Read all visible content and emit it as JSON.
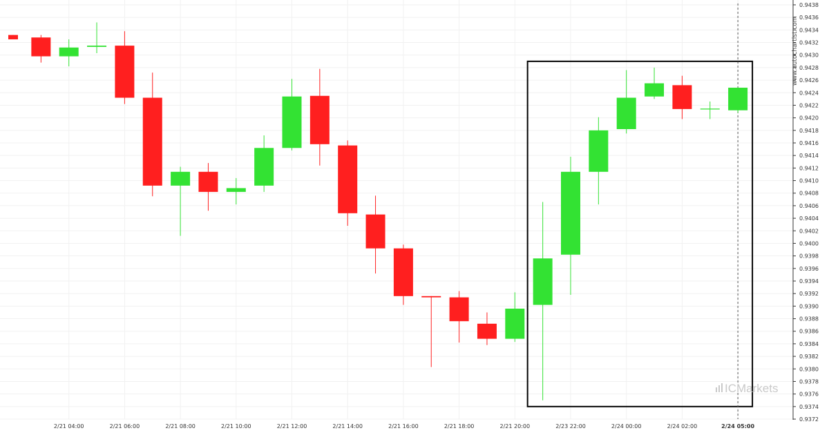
{
  "chart_data": {
    "type": "candlestick",
    "title": "",
    "xlabel": "",
    "ylabel": "",
    "ylim": [
      0.9372,
      0.9438
    ],
    "grid": true,
    "up_color": "#33e233",
    "down_color": "#ff1f1f",
    "y_ticks": [
      "0.9372",
      "0.9374",
      "0.9376",
      "0.9378",
      "0.9380",
      "0.9382",
      "0.9384",
      "0.9386",
      "0.9388",
      "0.9390",
      "0.9392",
      "0.9394",
      "0.9396",
      "0.9398",
      "0.9400",
      "0.9402",
      "0.9404",
      "0.9406",
      "0.9408",
      "0.9410",
      "0.9412",
      "0.9414",
      "0.9416",
      "0.9418",
      "0.9420",
      "0.9422",
      "0.9424",
      "0.9426",
      "0.9428",
      "0.9430",
      "0.9432",
      "0.9434",
      "0.9436",
      "0.9438"
    ],
    "x_ticks": [
      {
        "slot": 2,
        "label": "2/21 04:00"
      },
      {
        "slot": 4,
        "label": "2/21 06:00"
      },
      {
        "slot": 6,
        "label": "2/21 08:00"
      },
      {
        "slot": 8,
        "label": "2/21 10:00"
      },
      {
        "slot": 10,
        "label": "2/21 12:00"
      },
      {
        "slot": 12,
        "label": "2/21 14:00"
      },
      {
        "slot": 14,
        "label": "2/21 16:00"
      },
      {
        "slot": 16,
        "label": "2/21 18:00"
      },
      {
        "slot": 18,
        "label": "2/21 20:00"
      },
      {
        "slot": 20,
        "label": "2/23 22:00"
      },
      {
        "slot": 22,
        "label": "2/24 00:00"
      },
      {
        "slot": 24,
        "label": "2/24 02:00"
      },
      {
        "slot": 26,
        "label": "2/24 05:00",
        "highlight": true
      }
    ],
    "candles": [
      {
        "slot": 0,
        "open": 0.94332,
        "high": 0.94332,
        "low": 0.94325,
        "close": 0.94325
      },
      {
        "slot": 1,
        "open": 0.94328,
        "high": 0.94332,
        "low": 0.94288,
        "close": 0.94298
      },
      {
        "slot": 2,
        "open": 0.94298,
        "high": 0.94325,
        "low": 0.94282,
        "close": 0.94312
      },
      {
        "slot": 3,
        "open": 0.94313,
        "high": 0.94352,
        "low": 0.94303,
        "close": 0.94315
      },
      {
        "slot": 4,
        "open": 0.94315,
        "high": 0.94338,
        "low": 0.94222,
        "close": 0.94232
      },
      {
        "slot": 5,
        "open": 0.94232,
        "high": 0.94272,
        "low": 0.94075,
        "close": 0.94092
      },
      {
        "slot": 6,
        "open": 0.94092,
        "high": 0.94122,
        "low": 0.94012,
        "close": 0.94114
      },
      {
        "slot": 7,
        "open": 0.94114,
        "high": 0.94128,
        "low": 0.94052,
        "close": 0.94082
      },
      {
        "slot": 8,
        "open": 0.94082,
        "high": 0.94104,
        "low": 0.94062,
        "close": 0.94088
      },
      {
        "slot": 9,
        "open": 0.94092,
        "high": 0.94172,
        "low": 0.94082,
        "close": 0.94152
      },
      {
        "slot": 10,
        "open": 0.94152,
        "high": 0.94262,
        "low": 0.94148,
        "close": 0.94234
      },
      {
        "slot": 11,
        "open": 0.94235,
        "high": 0.94278,
        "low": 0.94124,
        "close": 0.94158
      },
      {
        "slot": 12,
        "open": 0.94156,
        "high": 0.94164,
        "low": 0.94028,
        "close": 0.94048
      },
      {
        "slot": 13,
        "open": 0.94046,
        "high": 0.94076,
        "low": 0.93952,
        "close": 0.93992
      },
      {
        "slot": 14,
        "open": 0.93992,
        "high": 0.93998,
        "low": 0.93902,
        "close": 0.93916
      },
      {
        "slot": 15,
        "open": 0.93916,
        "high": 0.93916,
        "low": 0.93803,
        "close": 0.93914
      },
      {
        "slot": 16,
        "open": 0.93914,
        "high": 0.93924,
        "low": 0.93842,
        "close": 0.93876
      },
      {
        "slot": 17,
        "open": 0.93872,
        "high": 0.9389,
        "low": 0.93838,
        "close": 0.93848
      },
      {
        "slot": 18,
        "open": 0.93848,
        "high": 0.93922,
        "low": 0.93843,
        "close": 0.93896
      },
      {
        "slot": 19,
        "open": 0.93902,
        "high": 0.94066,
        "low": 0.9375,
        "close": 0.93976
      },
      {
        "slot": 20,
        "open": 0.93982,
        "high": 0.94138,
        "low": 0.93918,
        "close": 0.94114
      },
      {
        "slot": 21,
        "open": 0.94114,
        "high": 0.94201,
        "low": 0.94062,
        "close": 0.9418
      },
      {
        "slot": 22,
        "open": 0.94182,
        "high": 0.94276,
        "low": 0.94175,
        "close": 0.94232
      },
      {
        "slot": 23,
        "open": 0.94234,
        "high": 0.9428,
        "low": 0.9423,
        "close": 0.94255
      },
      {
        "slot": 24,
        "open": 0.94252,
        "high": 0.94267,
        "low": 0.94198,
        "close": 0.94214
      },
      {
        "slot": 25,
        "open": 0.94214,
        "high": 0.94226,
        "low": 0.94198,
        "close": 0.94214
      },
      {
        "slot": 26,
        "open": 0.94212,
        "high": 0.94248,
        "low": 0.94208,
        "close": 0.94248
      }
    ],
    "highlight_box": {
      "from_slot": 19,
      "to_slot": 26,
      "ymin": 0.9374,
      "ymax": 0.9429
    },
    "current_time_slot": 26
  },
  "watermark": {
    "site": "www.autochartist.com",
    "brand_prefix": "IC",
    "brand_name": "Markets"
  }
}
